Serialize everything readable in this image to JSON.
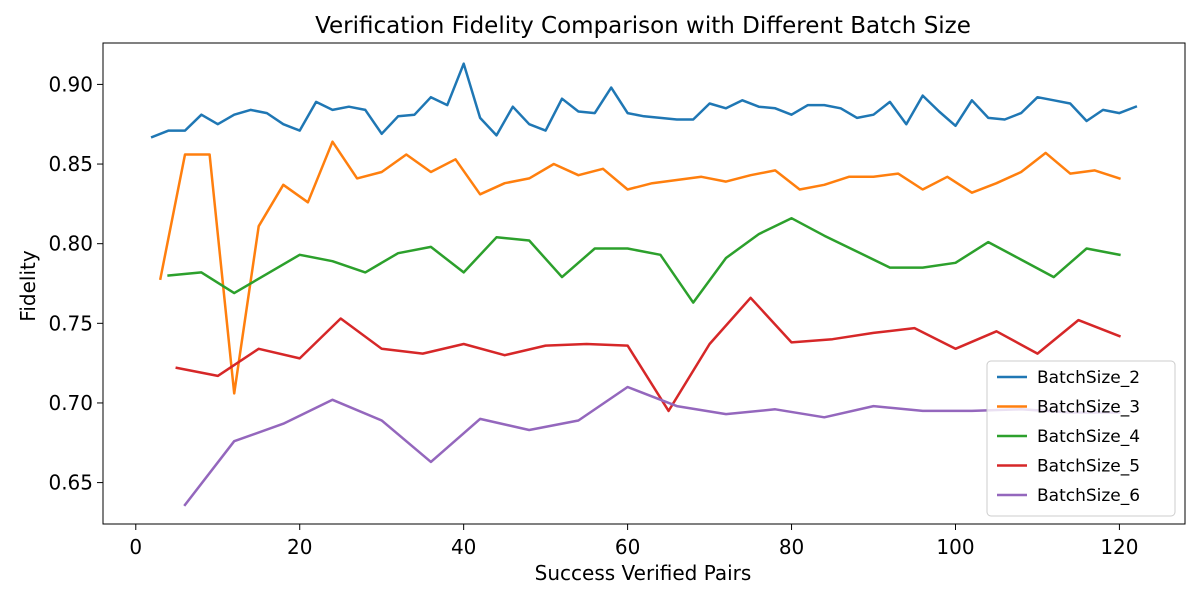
{
  "chart_data": {
    "type": "line",
    "title": "Verification Fidelity Comparison with Different Batch Size",
    "xlabel": "Success Verified Pairs",
    "ylabel": "Fidelity",
    "xlim": [
      -4,
      128
    ],
    "ylim": [
      0.624,
      0.926
    ],
    "xticks": [
      0,
      20,
      40,
      60,
      80,
      100,
      120
    ],
    "xtick_labels": [
      "0",
      "20",
      "40",
      "60",
      "80",
      "100",
      "120"
    ],
    "yticks": [
      0.65,
      0.7,
      0.75,
      0.8,
      0.85,
      0.9
    ],
    "ytick_labels": [
      "0.65",
      "0.70",
      "0.75",
      "0.80",
      "0.85",
      "0.90"
    ],
    "grid": false,
    "legend_position": "bottom-right",
    "series": [
      {
        "name": "BatchSize_2",
        "color": "#1f77b4",
        "x": [
          2,
          4,
          6,
          8,
          10,
          12,
          14,
          16,
          18,
          20,
          22,
          24,
          26,
          28,
          30,
          32,
          34,
          36,
          38,
          40,
          42,
          44,
          46,
          48,
          50,
          52,
          54,
          56,
          58,
          60,
          62,
          64,
          66,
          68,
          70,
          72,
          74,
          76,
          78,
          80,
          82,
          84,
          86,
          88,
          90,
          92,
          94,
          96,
          98,
          100,
          102,
          104,
          106,
          108,
          110,
          112,
          114,
          116,
          118,
          120,
          122
        ],
        "y": [
          0.867,
          0.871,
          0.871,
          0.881,
          0.875,
          0.881,
          0.884,
          0.882,
          0.875,
          0.871,
          0.889,
          0.884,
          0.886,
          0.884,
          0.869,
          0.88,
          0.881,
          0.892,
          0.887,
          0.913,
          0.879,
          0.868,
          0.886,
          0.875,
          0.871,
          0.891,
          0.883,
          0.882,
          0.898,
          0.882,
          0.88,
          0.879,
          0.878,
          0.878,
          0.888,
          0.885,
          0.89,
          0.886,
          0.885,
          0.881,
          0.887,
          0.887,
          0.885,
          0.879,
          0.881,
          0.889,
          0.875,
          0.893,
          0.883,
          0.874,
          0.89,
          0.879,
          0.878,
          0.882,
          0.892,
          0.89,
          0.888,
          0.877,
          0.884,
          0.882,
          0.886
        ]
      },
      {
        "name": "BatchSize_3",
        "color": "#ff7f0e",
        "x": [
          3,
          6,
          9,
          12,
          15,
          18,
          21,
          24,
          27,
          30,
          33,
          36,
          39,
          42,
          45,
          48,
          51,
          54,
          57,
          60,
          63,
          66,
          69,
          72,
          75,
          78,
          81,
          84,
          87,
          90,
          93,
          96,
          99,
          102,
          105,
          108,
          111,
          114,
          117,
          120
        ],
        "y": [
          0.778,
          0.856,
          0.856,
          0.706,
          0.811,
          0.837,
          0.826,
          0.864,
          0.841,
          0.845,
          0.856,
          0.845,
          0.853,
          0.831,
          0.838,
          0.841,
          0.85,
          0.843,
          0.847,
          0.834,
          0.838,
          0.84,
          0.842,
          0.839,
          0.843,
          0.846,
          0.834,
          0.837,
          0.842,
          0.842,
          0.844,
          0.834,
          0.842,
          0.832,
          0.838,
          0.845,
          0.857,
          0.844,
          0.846,
          0.841
        ]
      },
      {
        "name": "BatchSize_4",
        "color": "#2ca02c",
        "x": [
          4,
          8,
          12,
          16,
          20,
          24,
          28,
          32,
          36,
          40,
          44,
          48,
          52,
          56,
          60,
          64,
          68,
          72,
          76,
          80,
          84,
          88,
          92,
          96,
          100,
          104,
          108,
          112,
          116,
          120
        ],
        "y": [
          0.78,
          0.782,
          0.769,
          0.781,
          0.793,
          0.789,
          0.782,
          0.794,
          0.798,
          0.782,
          0.804,
          0.802,
          0.779,
          0.797,
          0.797,
          0.793,
          0.763,
          0.791,
          0.806,
          0.816,
          0.805,
          0.795,
          0.785,
          0.785,
          0.788,
          0.801,
          0.79,
          0.779,
          0.797,
          0.793
        ]
      },
      {
        "name": "BatchSize_5",
        "color": "#d62728",
        "x": [
          5,
          10,
          15,
          20,
          25,
          30,
          35,
          40,
          45,
          50,
          55,
          60,
          65,
          70,
          75,
          80,
          85,
          90,
          95,
          100,
          105,
          110,
          115,
          120
        ],
        "y": [
          0.722,
          0.717,
          0.734,
          0.728,
          0.753,
          0.734,
          0.731,
          0.737,
          0.73,
          0.736,
          0.737,
          0.736,
          0.695,
          0.737,
          0.766,
          0.738,
          0.74,
          0.744,
          0.747,
          0.734,
          0.745,
          0.731,
          0.752,
          0.742
        ]
      },
      {
        "name": "BatchSize_6",
        "color": "#9467bd",
        "x": [
          6,
          12,
          18,
          24,
          30,
          36,
          42,
          48,
          54,
          60,
          66,
          72,
          78,
          84,
          90,
          96,
          102,
          108,
          114,
          120
        ],
        "y": [
          0.636,
          0.676,
          0.687,
          0.702,
          0.689,
          0.663,
          0.69,
          0.683,
          0.689,
          0.71,
          0.698,
          0.693,
          0.696,
          0.691,
          0.698,
          0.695,
          0.695,
          0.696,
          0.694,
          0.694
        ]
      }
    ]
  }
}
